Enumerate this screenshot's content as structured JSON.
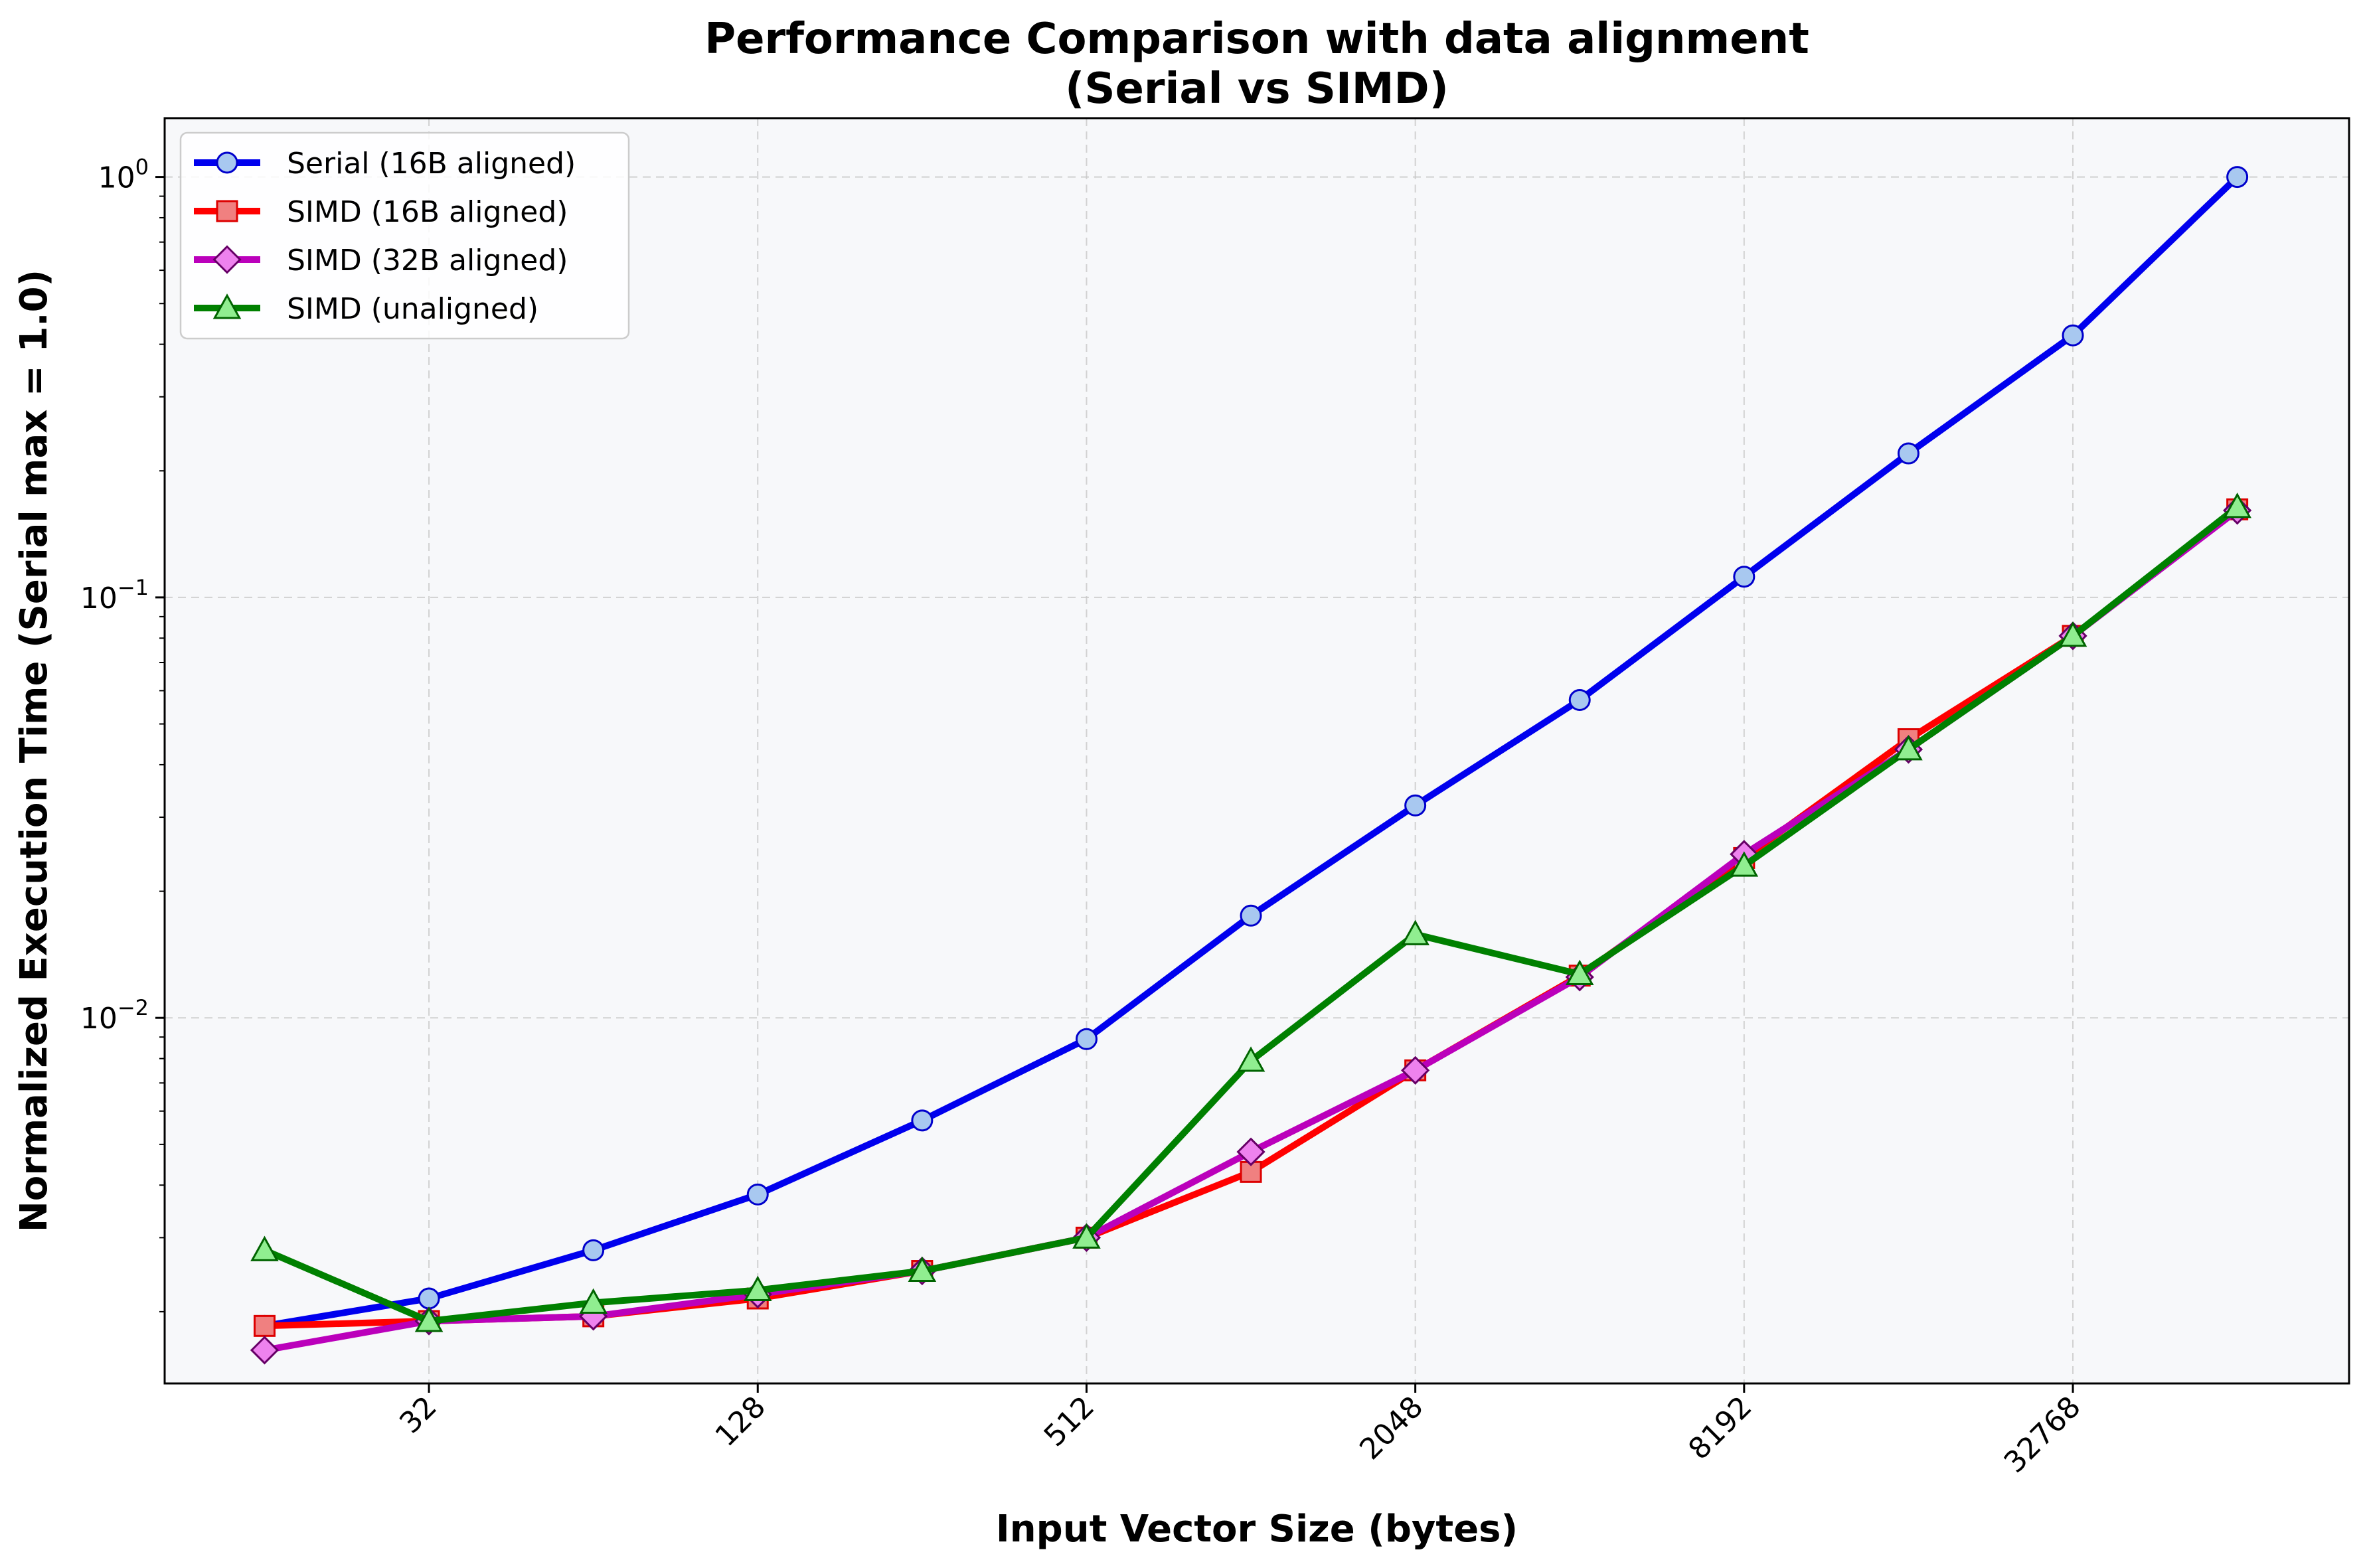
{
  "chart_data": {
    "type": "line",
    "title": "Performance Comparison with data alignment",
    "subtitle": "(Serial vs SIMD)",
    "xlabel": "Input Vector Size (bytes)",
    "ylabel": "Normalized Execution Time (Serial max = 1.0)",
    "x_scale": "log2",
    "y_scale": "log10",
    "xlim": [
      10.5,
      105000
    ],
    "ylim": [
      0.00135,
      1.38
    ],
    "x_ticks": [
      32,
      128,
      512,
      2048,
      8192,
      32768
    ],
    "x_tick_labels": [
      "32",
      "128",
      "512",
      "2048",
      "8192",
      "32768"
    ],
    "y_ticks": [
      0.01,
      0.1,
      1
    ],
    "y_tick_labels": [
      {
        "base": "10",
        "exp": "−2"
      },
      {
        "base": "10",
        "exp": "−1"
      },
      {
        "base": "10",
        "exp": "0"
      }
    ],
    "grid": true,
    "legend_position": "top-left",
    "x": [
      16,
      32,
      64,
      128,
      256,
      512,
      1024,
      2048,
      4096,
      8192,
      16384,
      32768,
      65536
    ],
    "series": [
      {
        "name": "Serial (16B aligned)",
        "color": "#0000ee",
        "marker": "circle",
        "marker_fill": "#a8c8f0",
        "values": [
          0.00185,
          0.00215,
          0.0028,
          0.0038,
          0.0057,
          0.0089,
          0.0175,
          0.032,
          0.057,
          0.112,
          0.22,
          0.42,
          1.0
        ]
      },
      {
        "name": "SIMD (16B aligned)",
        "color": "#ff0000",
        "marker": "square",
        "marker_fill": "#f08080",
        "values": [
          0.00185,
          0.0019,
          0.00195,
          0.00215,
          0.0025,
          0.003,
          0.0043,
          0.0075,
          0.0126,
          0.024,
          0.046,
          0.081,
          0.162
        ]
      },
      {
        "name": "SIMD (32B aligned)",
        "color": "#bb00bb",
        "marker": "diamond",
        "marker_fill": "#ee82ee",
        "values": [
          0.00162,
          0.0019,
          0.00195,
          0.0022,
          0.0025,
          0.003,
          0.0048,
          0.0075,
          0.0125,
          0.0245,
          0.0435,
          0.081,
          0.161
        ]
      },
      {
        "name": "SIMD (unaligned)",
        "color": "#008000",
        "marker": "triangle",
        "marker_fill": "#90ee90",
        "values": [
          0.0028,
          0.0019,
          0.0021,
          0.00225,
          0.0025,
          0.003,
          0.0079,
          0.0158,
          0.0127,
          0.023,
          0.0435,
          0.081,
          0.164
        ]
      }
    ]
  }
}
